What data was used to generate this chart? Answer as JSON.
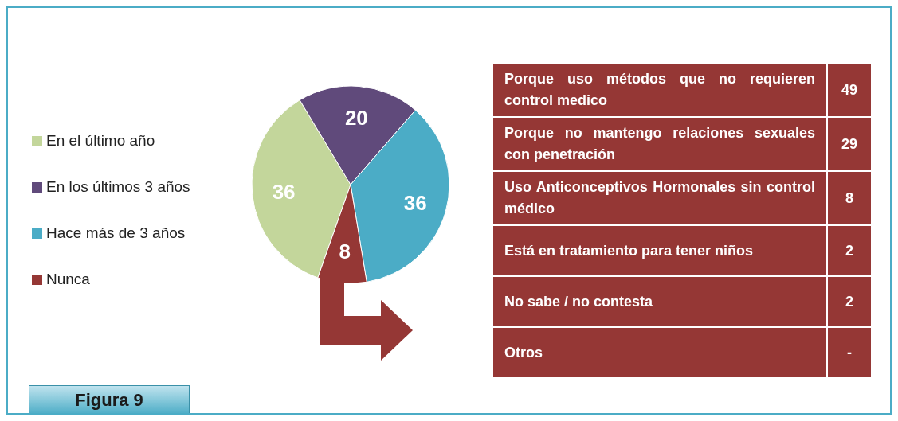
{
  "chart_data": [
    {
      "type": "pie",
      "categories": [
        "En el último año",
        "En los últimos 3 años",
        "Hace más de 3 años",
        "Nunca"
      ],
      "values": [
        36,
        20,
        36,
        8
      ],
      "colors": [
        "#c3d69b",
        "#604a7b",
        "#4bacc6",
        "#953735"
      ],
      "data_labels": true,
      "legend": "left",
      "annotations": [
        "Figura 9"
      ]
    },
    {
      "type": "other",
      "categories": [
        "Porque uso métodos que no requieren control medico",
        "Porque no mantengo relaciones sexuales con penetración",
        "Uso Anticonceptivos Hormonales sin control médico",
        "Está en tratamiento para tener niños",
        "No sabe / no contesta",
        "Otros"
      ],
      "value_labels": [
        "49",
        "29",
        "8",
        "2",
        "2",
        "-"
      ]
    }
  ]
}
